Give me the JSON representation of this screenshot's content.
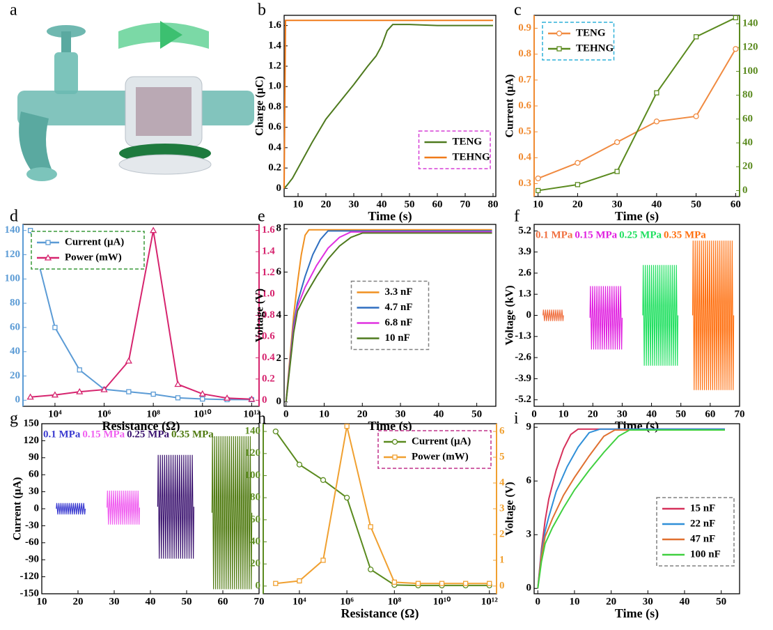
{
  "chart_data": [
    {
      "type": "illustration",
      "label": "a"
    },
    {
      "type": "line",
      "label": "b",
      "xlabel": "Time (s)",
      "ylabel": "Charge (μC)",
      "xlim": [
        5,
        81
      ],
      "xticks": [
        10,
        20,
        30,
        40,
        50,
        60,
        70,
        80
      ],
      "ylim": [
        -0.08,
        1.7
      ],
      "yticks": [
        0,
        0.2,
        0.4,
        0.6,
        0.8,
        {
          "value": 1,
          "label": "1.0"
        },
        1.2,
        1.4,
        1.6
      ],
      "legend": "lower right",
      "legend_border": "#d63fd6",
      "series": [
        {
          "name": "TENG",
          "color": "#4e7a1e",
          "x": [
            5,
            6,
            8,
            10,
            15,
            20,
            25,
            30,
            35,
            38,
            40,
            42,
            44,
            50,
            60,
            70,
            80
          ],
          "values": [
            0,
            0.03,
            0.1,
            0.2,
            0.45,
            0.68,
            0.85,
            1.02,
            1.2,
            1.3,
            1.4,
            1.55,
            1.61,
            1.61,
            1.6,
            1.6,
            1.6
          ]
        },
        {
          "name": "TEHNG",
          "color": "#f07a1a",
          "x": [
            5,
            5.5,
            80
          ],
          "values": [
            0,
            1.65,
            1.65
          ]
        }
      ]
    },
    {
      "type": "line",
      "label": "c",
      "xlabel": "Time (s)",
      "ylabel": "Current (μA)",
      "xlim": [
        9,
        61
      ],
      "xticks": [
        10,
        20,
        30,
        40,
        50,
        60
      ],
      "x": [
        10,
        20,
        30,
        40,
        50,
        60
      ],
      "ylim": [
        0.25,
        0.95
      ],
      "yticks": [
        0.3,
        0.4,
        0.5,
        0.6,
        0.7,
        0.8,
        0.9
      ],
      "ycolor": "#f08a30",
      "y2lim": [
        -5,
        147
      ],
      "y2ticks": [
        0,
        20,
        40,
        60,
        80,
        100,
        120,
        140
      ],
      "y2color": "#5a8a1e",
      "legend": "upper left",
      "legend_border": "#2fb0d8",
      "series": [
        {
          "name": "TENG",
          "color": "#f08a40",
          "marker": "circle",
          "values": [
            0.32,
            0.38,
            0.46,
            0.54,
            0.56,
            0.82
          ]
        },
        {
          "name": "TEHNG",
          "color": "#5a8a1e",
          "marker": "square",
          "axis": "y2",
          "values": [
            0,
            5,
            16,
            82,
            129,
            145
          ]
        }
      ]
    },
    {
      "type": "line",
      "label": "d",
      "xlabel": "Resistance (Ω)",
      "xscale": "log",
      "xlim": [
        500,
        2000000000000
      ],
      "xticks": [
        {
          "value": 10000,
          "label": "10⁴"
        },
        {
          "value": 1000000,
          "label": "10⁶"
        },
        {
          "value": 100000000,
          "label": "10⁸"
        },
        {
          "value": 10000000000,
          "label": "10¹⁰"
        },
        {
          "value": 1000000000000,
          "label": "10¹²"
        }
      ],
      "x": [
        1000,
        10000,
        100000,
        1000000,
        10000000,
        100000000,
        1000000000,
        10000000000,
        100000000000,
        1000000000000
      ],
      "ylim": [
        -5,
        145
      ],
      "yticks": [
        0,
        20,
        40,
        60,
        80,
        100,
        120,
        140
      ],
      "ycolor": "#5b9bd5",
      "y2lim": [
        -0.057,
        1.657
      ],
      "y2ticks": [
        0,
        0.2,
        0.4,
        0.6,
        0.8,
        {
          "value": 1,
          "label": "1.0"
        },
        1.2,
        1.4,
        1.6
      ],
      "y2color": "#d6246e",
      "legend": "upper left",
      "legend_border": "#3a9a3a",
      "series": [
        {
          "name": "Current (μA)",
          "color": "#5b9bd5",
          "marker": "square",
          "values": [
            140,
            60,
            25,
            9,
            7,
            5,
            2,
            1,
            0.5,
            0.5
          ]
        },
        {
          "name": "Power (mW)",
          "color": "#d6246e",
          "marker": "triangle",
          "axis": "y2",
          "values": [
            0.03,
            0.05,
            0.08,
            0.1,
            0.37,
            1.6,
            0.15,
            0.06,
            0.02,
            0.01
          ]
        }
      ]
    },
    {
      "type": "line",
      "label": "e",
      "xlabel": "Time (s)",
      "ylabel": "Voltage (V)",
      "xlim": [
        -0.5,
        55
      ],
      "xticks": [
        0,
        10,
        20,
        30,
        40,
        50
      ],
      "ylim": [
        -0.2,
        8.2
      ],
      "yticks": [
        0,
        2,
        4,
        6,
        8
      ],
      "legend": "center",
      "legend_border": "#808080",
      "series": [
        {
          "name": "3.3 nF",
          "color": "#f09020",
          "x": [
            0,
            1,
            2,
            3,
            4,
            5,
            6,
            54
          ],
          "values": [
            0,
            2,
            4,
            5.5,
            6.8,
            7.7,
            7.95,
            7.95
          ]
        },
        {
          "name": "4.7 nF",
          "color": "#2f6fc0",
          "x": [
            0,
            1,
            2,
            3,
            5,
            7,
            9,
            11,
            54
          ],
          "values": [
            0,
            1.8,
            3.6,
            4.6,
            5.8,
            6.8,
            7.5,
            7.9,
            7.9
          ]
        },
        {
          "name": "6.8 nF",
          "color": "#e030e0",
          "x": [
            0,
            1,
            2,
            3,
            5,
            8,
            11,
            14,
            17,
            54
          ],
          "values": [
            0,
            1.7,
            3.4,
            4.4,
            5.3,
            6.3,
            7.1,
            7.6,
            7.85,
            7.85
          ]
        },
        {
          "name": "10 nF",
          "color": "#4e7a1e",
          "x": [
            0,
            1,
            2,
            3,
            5,
            8,
            11,
            14,
            17,
            20,
            54
          ],
          "values": [
            0,
            1.6,
            3.2,
            4.2,
            4.9,
            5.8,
            6.6,
            7.2,
            7.6,
            7.8,
            7.8
          ]
        }
      ]
    },
    {
      "type": "burst",
      "label": "f",
      "xlabel": "Time (s)",
      "ylabel": "Voltage (kV)",
      "xlim": [
        0,
        70
      ],
      "xticks": [
        0,
        10,
        20,
        30,
        40,
        50,
        60,
        70
      ],
      "ylim": [
        -5.6,
        5.6
      ],
      "yticks": [
        -5.2,
        -3.9,
        -2.6,
        -1.3,
        0,
        1.3,
        2.6,
        3.9,
        5.2
      ],
      "series": [
        {
          "name": "0.1 MPa",
          "color": "#f07040",
          "x": [
            3,
            10
          ],
          "values": [
            -0.35,
            0.35
          ]
        },
        {
          "name": "0.15 MPa",
          "color": "#e020e0",
          "x": [
            19,
            30
          ],
          "values": [
            -2.1,
            1.8
          ]
        },
        {
          "name": "0.25 MPa",
          "color": "#20e060",
          "x": [
            37,
            49
          ],
          "values": [
            -3.1,
            3.1
          ]
        },
        {
          "name": "0.35 MPa",
          "color": "#ff7010",
          "x": [
            54,
            68
          ],
          "values": [
            -4.6,
            4.6
          ]
        }
      ]
    },
    {
      "type": "burst",
      "label": "g",
      "ylabel": "Current (μA)",
      "xlim": [
        10,
        70
      ],
      "xticks": [
        10,
        20,
        30,
        40,
        50,
        60,
        70
      ],
      "ylim": [
        -150,
        150
      ],
      "yticks": [
        -150,
        -120,
        -90,
        -60,
        -30,
        0,
        30,
        60,
        90,
        120,
        150
      ],
      "series": [
        {
          "name": "0.1 MPa",
          "color": "#3a3ad0",
          "x": [
            14,
            22
          ],
          "values": [
            -10,
            10
          ]
        },
        {
          "name": "0.15 MPa",
          "color": "#f060f0",
          "x": [
            28,
            37
          ],
          "values": [
            -28,
            32
          ]
        },
        {
          "name": "0.25 MPa",
          "color": "#3c1470",
          "x": [
            42,
            52
          ],
          "values": [
            -88,
            95
          ]
        },
        {
          "name": "0.35 MPa",
          "color": "#4f7a10",
          "x": [
            57,
            68
          ],
          "values": [
            -142,
            128
          ]
        }
      ]
    },
    {
      "type": "line",
      "label": "h",
      "xlabel": "Resistance (Ω)",
      "xscale": "log",
      "xlim": [
        300,
        2000000000000
      ],
      "xticks": [
        {
          "value": 10000,
          "label": "10⁴"
        },
        {
          "value": 1000000,
          "label": "10⁶"
        },
        {
          "value": 100000000,
          "label": "10⁸"
        },
        {
          "value": 10000000000,
          "label": "10¹⁰"
        },
        {
          "value": 1000000000000,
          "label": "10¹²"
        }
      ],
      "x": [
        1000,
        10000,
        100000,
        1000000,
        10000000,
        100000000,
        1000000000,
        10000000000,
        100000000000,
        1000000000000
      ],
      "ylim": [
        -7,
        147
      ],
      "yticks": [
        0,
        20,
        40,
        60,
        80,
        100,
        120,
        140
      ],
      "ycolor": "#5a8a1e",
      "y2lim": [
        -0.3,
        6.3
      ],
      "y2ticks": [
        0,
        1,
        2,
        3,
        4,
        5,
        6
      ],
      "y2color": "#f0a030",
      "legend": "upper right",
      "legend_border": "#c0308a",
      "series": [
        {
          "name": "Current (μA)",
          "color": "#5a8a1e",
          "marker": "circle",
          "values": [
            140,
            110,
            96,
            80,
            15,
            1,
            0.5,
            0.5,
            0.5,
            0.5
          ]
        },
        {
          "name": "Power (mW)",
          "color": "#f0a030",
          "marker": "square",
          "axis": "y2",
          "values": [
            0.1,
            0.2,
            1,
            6.2,
            2.3,
            0.15,
            0.1,
            0.1,
            0.1,
            0.1
          ]
        }
      ]
    },
    {
      "type": "line",
      "label": "i",
      "xlabel": "Time (s)",
      "ylabel": "Voltage (V)",
      "xlim": [
        -1,
        55
      ],
      "xticks": [
        0,
        10,
        20,
        30,
        40,
        50
      ],
      "ylim": [
        -0.3,
        9.2
      ],
      "yticks": [
        0,
        3,
        6,
        9
      ],
      "legend": "lower right",
      "legend_border": "#808080",
      "series": [
        {
          "name": "15 nF",
          "color": "#d6305a",
          "x": [
            0,
            1,
            2,
            3,
            5,
            7,
            9,
            11,
            51
          ],
          "values": [
            0,
            2.2,
            3.8,
            5,
            6.6,
            7.8,
            8.6,
            8.9,
            8.9
          ]
        },
        {
          "name": "22 nF",
          "color": "#2f8fd8",
          "x": [
            0,
            1,
            2,
            3,
            5,
            8,
            11,
            14,
            17,
            51
          ],
          "values": [
            0,
            2,
            3.2,
            4,
            5.4,
            6.8,
            7.9,
            8.7,
            8.9,
            8.9
          ]
        },
        {
          "name": "47 nF",
          "color": "#e07030",
          "x": [
            0,
            1,
            2,
            4,
            7,
            10,
            14,
            18,
            21,
            51
          ],
          "values": [
            0,
            1.8,
            2.9,
            3.9,
            5.2,
            6.2,
            7.4,
            8.5,
            8.85,
            8.85
          ]
        },
        {
          "name": "100 nF",
          "color": "#40d040",
          "x": [
            0,
            1,
            2,
            4,
            7,
            10,
            14,
            18,
            22,
            25,
            51
          ],
          "values": [
            0,
            1.5,
            2.5,
            3.4,
            4.5,
            5.5,
            6.6,
            7.6,
            8.5,
            8.85,
            8.85
          ]
        }
      ]
    }
  ]
}
